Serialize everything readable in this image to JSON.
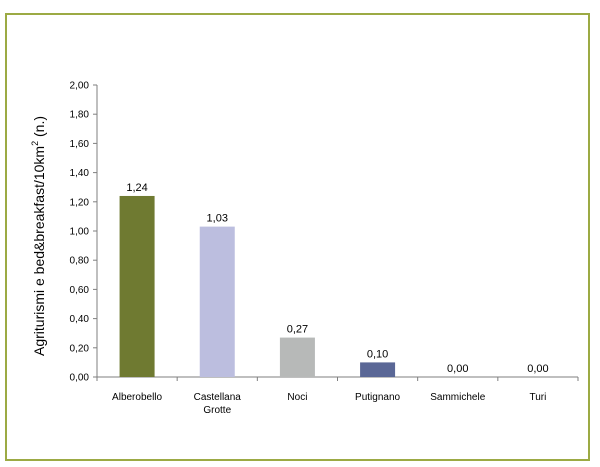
{
  "chart_data": {
    "type": "bar",
    "categories": [
      [
        "Alberobello"
      ],
      [
        "Castellana",
        "Grotte"
      ],
      [
        "Noci"
      ],
      [
        "Putignano"
      ],
      [
        "Sammichele"
      ],
      [
        "Turi"
      ]
    ],
    "values": [
      1.24,
      1.03,
      0.27,
      0.1,
      0.0,
      0.0
    ],
    "data_labels": [
      "1,24",
      "1,03",
      "0,27",
      "0,10",
      "0,00",
      "0,00"
    ],
    "colors": [
      "#6f7a31",
      "#bcbedf",
      "#b7b9b8",
      "#5a6796",
      "#b7b9b8",
      "#b7b9b8"
    ],
    "ylabel": "Agriturismi e bed&breakfast/10km",
    "ylabel_sup": "2",
    "ylabel_suffix": " (n.)",
    "ylim": [
      0,
      2
    ],
    "yticks": [
      0,
      0.2,
      0.4,
      0.6,
      0.8,
      1.0,
      1.2,
      1.4,
      1.6,
      1.8,
      2.0
    ],
    "ytick_labels": [
      "0,00",
      "0,20",
      "0,40",
      "0,60",
      "0,80",
      "1,00",
      "1,20",
      "1,40",
      "1,60",
      "1,80",
      "2,00"
    ],
    "grid": false,
    "legend": "none",
    "frame_color": "#9caa44"
  }
}
